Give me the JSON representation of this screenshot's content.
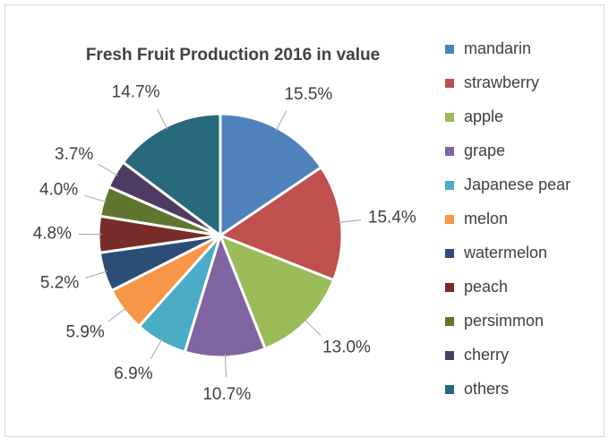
{
  "chart_data": {
    "type": "pie",
    "title": "Fresh Fruit Production 2016 in value",
    "categories": [
      "mandarin",
      "strawberry",
      "apple",
      "grape",
      "Japanese pear",
      "melon",
      "watermelon",
      "peach",
      "persimmon",
      "cherry",
      "others"
    ],
    "values": [
      15.5,
      15.4,
      13.0,
      10.7,
      6.9,
      5.9,
      5.2,
      4.8,
      4.0,
      3.7,
      14.7
    ],
    "value_labels": [
      "15.5%",
      "15.4%",
      "13.0%",
      "10.7%",
      "6.9%",
      "5.9%",
      "5.2%",
      "4.8%",
      "4.0%",
      "3.7%",
      "14.7%"
    ],
    "colors": [
      "#4f81bd",
      "#c0504d",
      "#9bbb59",
      "#8064a2",
      "#4bacc6",
      "#f79646",
      "#2c4d75",
      "#772c2a",
      "#5f7530",
      "#4d3b62",
      "#276a7c"
    ],
    "legend": "right"
  }
}
